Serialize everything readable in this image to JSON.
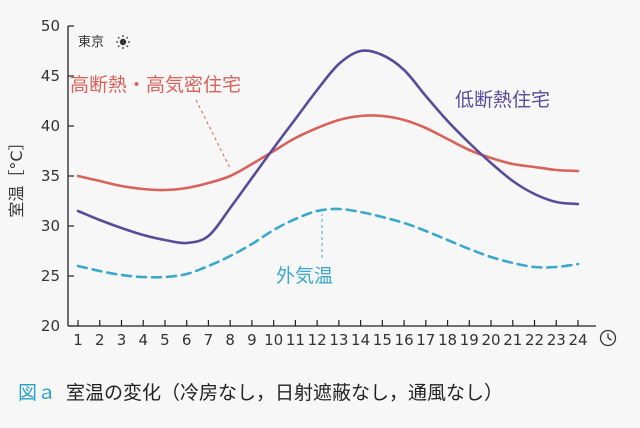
{
  "chart_data": {
    "type": "line",
    "location": "東京",
    "ylabel": "室温［°C］",
    "ylim": [
      20,
      50
    ],
    "yticks": [
      20,
      25,
      30,
      35,
      40,
      45,
      50
    ],
    "x": [
      1,
      2,
      3,
      4,
      5,
      6,
      7,
      8,
      9,
      10,
      11,
      12,
      13,
      14,
      15,
      16,
      17,
      18,
      19,
      20,
      21,
      22,
      23,
      24
    ],
    "xlim": [
      1,
      24
    ],
    "x_unit_icon": "clock-icon",
    "grid": false,
    "legend": "inline labels",
    "series": [
      {
        "name": "高断熱・高気密住宅",
        "color": "#d9625a",
        "style": "solid",
        "x": [
          1,
          2,
          3,
          4,
          5,
          6,
          7,
          8,
          9,
          10,
          11,
          12,
          13,
          14,
          15,
          16,
          17,
          18,
          19,
          20,
          21,
          22,
          23,
          24
        ],
        "values": [
          35.0,
          34.5,
          34.0,
          33.7,
          33.6,
          33.8,
          34.3,
          35.0,
          36.2,
          37.5,
          38.8,
          39.8,
          40.6,
          41.0,
          41.0,
          40.6,
          39.8,
          38.7,
          37.6,
          36.8,
          36.2,
          35.9,
          35.6,
          35.5
        ]
      },
      {
        "name": "低断熱住宅",
        "color": "#5a4a9a",
        "style": "solid",
        "x": [
          1,
          2,
          3,
          4,
          5,
          6,
          7,
          8,
          9,
          10,
          11,
          12,
          13,
          14,
          15,
          16,
          17,
          18,
          19,
          20,
          21,
          22,
          23,
          24
        ],
        "values": [
          31.5,
          30.6,
          29.8,
          29.1,
          28.6,
          28.3,
          29.0,
          31.8,
          34.8,
          37.8,
          40.7,
          43.6,
          46.2,
          47.5,
          47.1,
          45.6,
          43.0,
          40.5,
          38.3,
          36.3,
          34.5,
          33.2,
          32.4,
          32.2
        ]
      },
      {
        "name": "外気温",
        "color": "#3aa8cc",
        "style": "dashed",
        "x": [
          1,
          2,
          3,
          4,
          5,
          6,
          7,
          8,
          9,
          10,
          11,
          12,
          13,
          14,
          15,
          16,
          17,
          18,
          19,
          20,
          21,
          22,
          23,
          24
        ],
        "values": [
          26.0,
          25.5,
          25.1,
          24.9,
          24.9,
          25.2,
          26.0,
          27.0,
          28.2,
          29.6,
          30.7,
          31.5,
          31.7,
          31.4,
          30.9,
          30.3,
          29.5,
          28.6,
          27.7,
          26.9,
          26.3,
          25.9,
          25.9,
          26.2
        ]
      }
    ]
  },
  "caption": {
    "figure_label": "図ａ",
    "text": "室温の変化（冷房なし，日射遮蔽なし，通風なし）"
  },
  "colors": {
    "background": "#f7f7f8",
    "axis": "#222222",
    "caption_label": "#2aa0c8"
  }
}
